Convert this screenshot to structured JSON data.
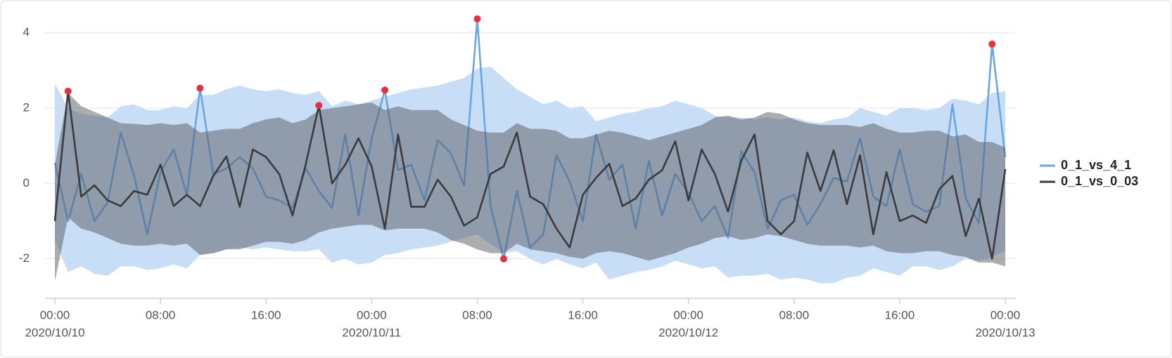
{
  "chart_data": {
    "type": "line",
    "x": [
      "2020/10/10 00:00",
      "2020/10/10 01:00",
      "2020/10/10 02:00",
      "2020/10/10 03:00",
      "2020/10/10 04:00",
      "2020/10/10 05:00",
      "2020/10/10 06:00",
      "2020/10/10 07:00",
      "2020/10/10 08:00",
      "2020/10/10 09:00",
      "2020/10/10 10:00",
      "2020/10/10 11:00",
      "2020/10/10 12:00",
      "2020/10/10 13:00",
      "2020/10/10 14:00",
      "2020/10/10 15:00",
      "2020/10/10 16:00",
      "2020/10/10 17:00",
      "2020/10/10 18:00",
      "2020/10/10 19:00",
      "2020/10/10 20:00",
      "2020/10/10 21:00",
      "2020/10/10 22:00",
      "2020/10/10 23:00",
      "2020/10/11 00:00",
      "2020/10/11 01:00",
      "2020/10/11 02:00",
      "2020/10/11 03:00",
      "2020/10/11 04:00",
      "2020/10/11 05:00",
      "2020/10/11 06:00",
      "2020/10/11 07:00",
      "2020/10/11 08:00",
      "2020/10/11 09:00",
      "2020/10/11 10:00",
      "2020/10/11 11:00",
      "2020/10/11 12:00",
      "2020/10/11 13:00",
      "2020/10/11 14:00",
      "2020/10/11 15:00",
      "2020/10/11 16:00",
      "2020/10/11 17:00",
      "2020/10/11 18:00",
      "2020/10/11 19:00",
      "2020/10/11 20:00",
      "2020/10/11 21:00",
      "2020/10/11 22:00",
      "2020/10/11 23:00",
      "2020/10/12 00:00",
      "2020/10/12 01:00",
      "2020/10/12 02:00",
      "2020/10/12 03:00",
      "2020/10/12 04:00",
      "2020/10/12 05:00",
      "2020/10/12 06:00",
      "2020/10/12 07:00",
      "2020/10/12 08:00",
      "2020/10/12 09:00",
      "2020/10/12 10:00",
      "2020/10/12 11:00",
      "2020/10/12 12:00",
      "2020/10/12 13:00",
      "2020/10/12 14:00",
      "2020/10/12 15:00",
      "2020/10/12 16:00",
      "2020/10/12 17:00",
      "2020/10/12 18:00",
      "2020/10/12 19:00",
      "2020/10/12 20:00",
      "2020/10/12 21:00",
      "2020/10/12 22:00",
      "2020/10/12 23:00",
      "2020/10/13 00:00"
    ],
    "xlim": [
      "2020/10/10 00:00",
      "2020/10/13 00:00"
    ],
    "xticks": [
      {
        "value": "2020/10/10 00:00",
        "label": "00:00",
        "date": "2020/10/10"
      },
      {
        "value": "2020/10/10 08:00",
        "label": "08:00"
      },
      {
        "value": "2020/10/10 16:00",
        "label": "16:00"
      },
      {
        "value": "2020/10/11 00:00",
        "label": "00:00",
        "date": "2020/10/11"
      },
      {
        "value": "2020/10/11 08:00",
        "label": "08:00"
      },
      {
        "value": "2020/10/11 16:00",
        "label": "16:00"
      },
      {
        "value": "2020/10/12 00:00",
        "label": "00:00",
        "date": "2020/10/12"
      },
      {
        "value": "2020/10/12 08:00",
        "label": "08:00"
      },
      {
        "value": "2020/10/12 16:00",
        "label": "16:00"
      },
      {
        "value": "2020/10/13 00:00",
        "label": "00:00",
        "date": "2020/10/13"
      }
    ],
    "ylim": [
      -3.05,
      4.6
    ],
    "yticks": [
      -2,
      0,
      2,
      4
    ],
    "grid": true,
    "legend": "right",
    "anomaly_color": "#e5323c",
    "series": [
      {
        "name": "0_1_vs_4_1",
        "color": "#6aa6e6",
        "values": [
          0.55,
          -1.0,
          0.25,
          -1.0,
          -0.5,
          1.35,
          0.2,
          -1.35,
          0.3,
          0.9,
          -0.3,
          2.53,
          0.25,
          0.4,
          0.7,
          0.4,
          -0.35,
          -0.45,
          -0.65,
          0.4,
          -0.2,
          -0.65,
          1.3,
          -0.85,
          1.2,
          2.48,
          0.35,
          0.5,
          -0.45,
          1.15,
          0.8,
          -0.05,
          4.37,
          -0.6,
          -2.0,
          -0.2,
          -1.7,
          -1.35,
          0.75,
          0.05,
          -1.0,
          1.3,
          0.1,
          0.5,
          -1.2,
          0.6,
          -0.85,
          0.25,
          -0.25,
          -1.0,
          -0.6,
          -1.45,
          0.85,
          0.3,
          -1.2,
          -0.45,
          -0.3,
          -1.1,
          -0.55,
          0.15,
          0.05,
          1.2,
          -0.35,
          -0.6,
          0.9,
          -0.55,
          -0.75,
          -0.6,
          2.1,
          -0.4,
          -1.05,
          3.7,
          0.7
        ],
        "band": {
          "color": "#c8ddf6",
          "upper": [
            2.65,
            2.0,
            1.85,
            1.8,
            1.75,
            2.05,
            2.1,
            1.95,
            1.95,
            2.05,
            2.0,
            2.35,
            2.35,
            2.5,
            2.6,
            2.5,
            2.45,
            2.5,
            2.4,
            2.35,
            2.45,
            2.05,
            2.2,
            2.1,
            2.2,
            2.3,
            2.4,
            2.5,
            2.55,
            2.6,
            2.7,
            2.8,
            3.05,
            3.1,
            2.8,
            2.5,
            2.3,
            2.1,
            2.2,
            2.0,
            2.05,
            1.65,
            1.75,
            1.85,
            1.9,
            2.0,
            2.05,
            2.2,
            2.1,
            2.0,
            1.8,
            1.75,
            1.75,
            1.7,
            1.75,
            1.7,
            1.75,
            1.65,
            1.6,
            1.7,
            1.75,
            2.0,
            1.9,
            1.8,
            2.0,
            2.0,
            1.95,
            2.0,
            2.25,
            2.2,
            2.1,
            2.4,
            2.45
          ],
          "lower": [
            -1.5,
            -2.35,
            -2.2,
            -2.4,
            -2.45,
            -2.2,
            -2.2,
            -2.3,
            -2.25,
            -2.15,
            -2.25,
            -1.9,
            -1.85,
            -1.75,
            -1.7,
            -1.75,
            -1.7,
            -1.75,
            -1.8,
            -1.8,
            -1.75,
            -2.1,
            -2.0,
            -2.15,
            -2.1,
            -1.9,
            -1.85,
            -1.75,
            -1.7,
            -1.65,
            -1.55,
            -1.45,
            -1.35,
            -1.6,
            -1.85,
            -1.8,
            -2.0,
            -2.15,
            -2.0,
            -2.15,
            -2.25,
            -2.1,
            -2.55,
            -2.45,
            -2.35,
            -2.3,
            -2.2,
            -2.05,
            -2.15,
            -2.25,
            -2.2,
            -2.5,
            -2.45,
            -2.45,
            -2.4,
            -2.55,
            -2.5,
            -2.55,
            -2.65,
            -2.65,
            -2.5,
            -2.45,
            -2.25,
            -2.35,
            -2.45,
            -2.2,
            -2.2,
            -2.3,
            -2.2,
            -2.0,
            -2.05,
            -1.95,
            -1.8
          ]
        },
        "anomalies": [
          "2020/10/10 11:00",
          "2020/10/11 01:00",
          "2020/10/11 08:00",
          "2020/10/11 10:00",
          "2020/10/12 23:00"
        ]
      },
      {
        "name": "0_1_vs_0_03",
        "color": "#3b3b3d",
        "values": [
          -1.0,
          2.45,
          -0.35,
          -0.05,
          -0.45,
          -0.6,
          -0.2,
          -0.3,
          0.5,
          -0.6,
          -0.3,
          -0.6,
          0.2,
          0.72,
          -0.62,
          0.9,
          0.7,
          0.25,
          -0.85,
          0.5,
          2.07,
          0.0,
          0.5,
          1.2,
          0.45,
          -1.2,
          1.3,
          -0.62,
          -0.62,
          0.1,
          -0.35,
          -1.12,
          -0.9,
          0.25,
          0.45,
          1.35,
          -0.35,
          -0.55,
          -1.2,
          -1.7,
          -0.3,
          0.15,
          0.52,
          -0.6,
          -0.4,
          0.1,
          0.35,
          1.12,
          -0.45,
          0.9,
          0.25,
          -0.75,
          0.6,
          1.3,
          -1.0,
          -1.35,
          -1.0,
          0.82,
          -0.2,
          0.88,
          -0.55,
          0.75,
          -1.35,
          0.3,
          -1.0,
          -0.85,
          -1.05,
          -0.15,
          0.2,
          -1.4,
          -0.4,
          -2.0,
          0.38
        ],
        "band": {
          "color": "rgba(88,92,98,0.5)",
          "upper": [
            0.5,
            2.4,
            2.05,
            1.9,
            1.75,
            1.6,
            1.58,
            1.55,
            1.6,
            1.55,
            1.6,
            1.35,
            1.4,
            1.45,
            1.45,
            1.6,
            1.7,
            1.75,
            1.6,
            1.7,
            1.95,
            2.0,
            2.05,
            2.1,
            2.15,
            1.95,
            2.05,
            1.95,
            1.95,
            1.95,
            1.7,
            1.55,
            1.4,
            1.35,
            1.35,
            1.6,
            1.45,
            1.45,
            1.4,
            1.2,
            1.2,
            1.3,
            1.4,
            1.35,
            1.25,
            1.15,
            1.25,
            1.35,
            1.45,
            1.55,
            1.75,
            1.8,
            1.7,
            1.75,
            1.9,
            1.85,
            1.7,
            1.6,
            1.55,
            1.55,
            1.55,
            1.5,
            1.6,
            1.45,
            1.35,
            1.35,
            1.4,
            1.4,
            1.25,
            1.3,
            1.1,
            1.1,
            0.95
          ],
          "lower": [
            -2.6,
            -0.9,
            -1.2,
            -1.3,
            -1.45,
            -1.6,
            -1.65,
            -1.65,
            -1.6,
            -1.65,
            -1.6,
            -1.9,
            -1.85,
            -1.75,
            -1.75,
            -1.65,
            -1.55,
            -1.55,
            -1.6,
            -1.5,
            -1.3,
            -1.2,
            -1.15,
            -1.1,
            -1.1,
            -1.25,
            -1.2,
            -1.2,
            -1.2,
            -1.3,
            -1.5,
            -1.6,
            -1.75,
            -1.85,
            -1.85,
            -1.6,
            -1.75,
            -1.8,
            -1.85,
            -1.95,
            -2.0,
            -1.85,
            -1.8,
            -1.85,
            -1.95,
            -2.05,
            -1.95,
            -1.85,
            -1.7,
            -1.6,
            -1.45,
            -1.4,
            -1.5,
            -1.45,
            -1.35,
            -1.4,
            -1.5,
            -1.6,
            -1.65,
            -1.65,
            -1.65,
            -1.7,
            -1.65,
            -1.8,
            -1.85,
            -1.85,
            -1.8,
            -1.8,
            -1.9,
            -1.95,
            -2.1,
            -2.1,
            -2.2
          ]
        },
        "anomalies": [
          "2020/10/10 01:00",
          "2020/10/10 20:00"
        ]
      }
    ]
  }
}
